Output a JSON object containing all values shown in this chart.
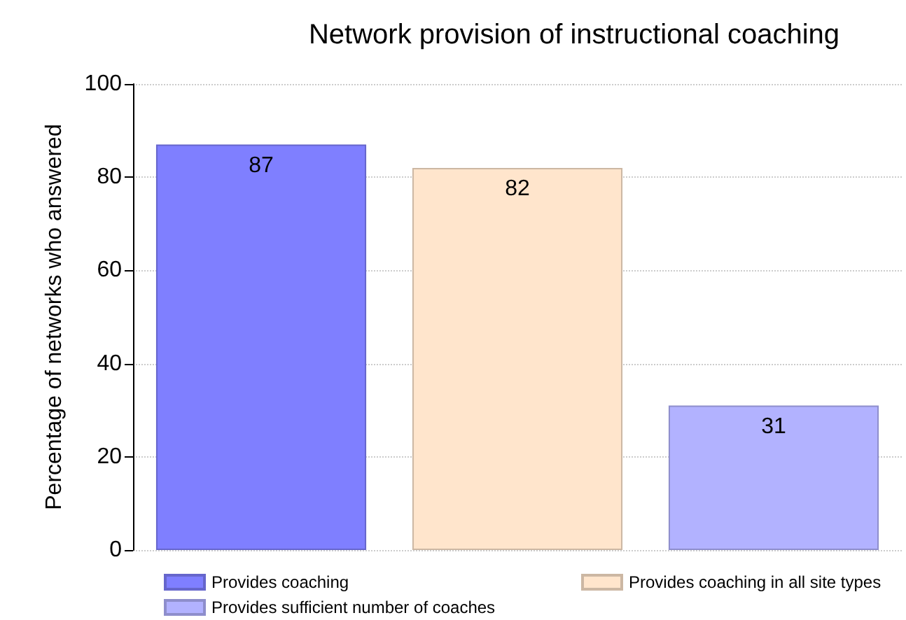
{
  "chart_data": {
    "type": "bar",
    "title": "Network provision of instructional coaching",
    "ylabel": "Percentage of networks who answered",
    "categories": [
      null,
      null,
      null
    ],
    "series": [
      {
        "name": "Provides coaching",
        "color": "#7f7fff",
        "values": [
          87,
          null,
          null
        ]
      },
      {
        "name": "Provides coaching in all site types",
        "color": "#ffe5cc",
        "values": [
          null,
          82,
          null
        ]
      },
      {
        "name": "Provides sufficient number of coaches",
        "color": "#b2b2ff",
        "values": [
          null,
          null,
          31
        ]
      }
    ],
    "ylim": [
      0,
      100
    ],
    "yticks": [
      0,
      20,
      40,
      60,
      80,
      100
    ],
    "grid": "y",
    "legend": "bottom",
    "data_labels": true
  }
}
